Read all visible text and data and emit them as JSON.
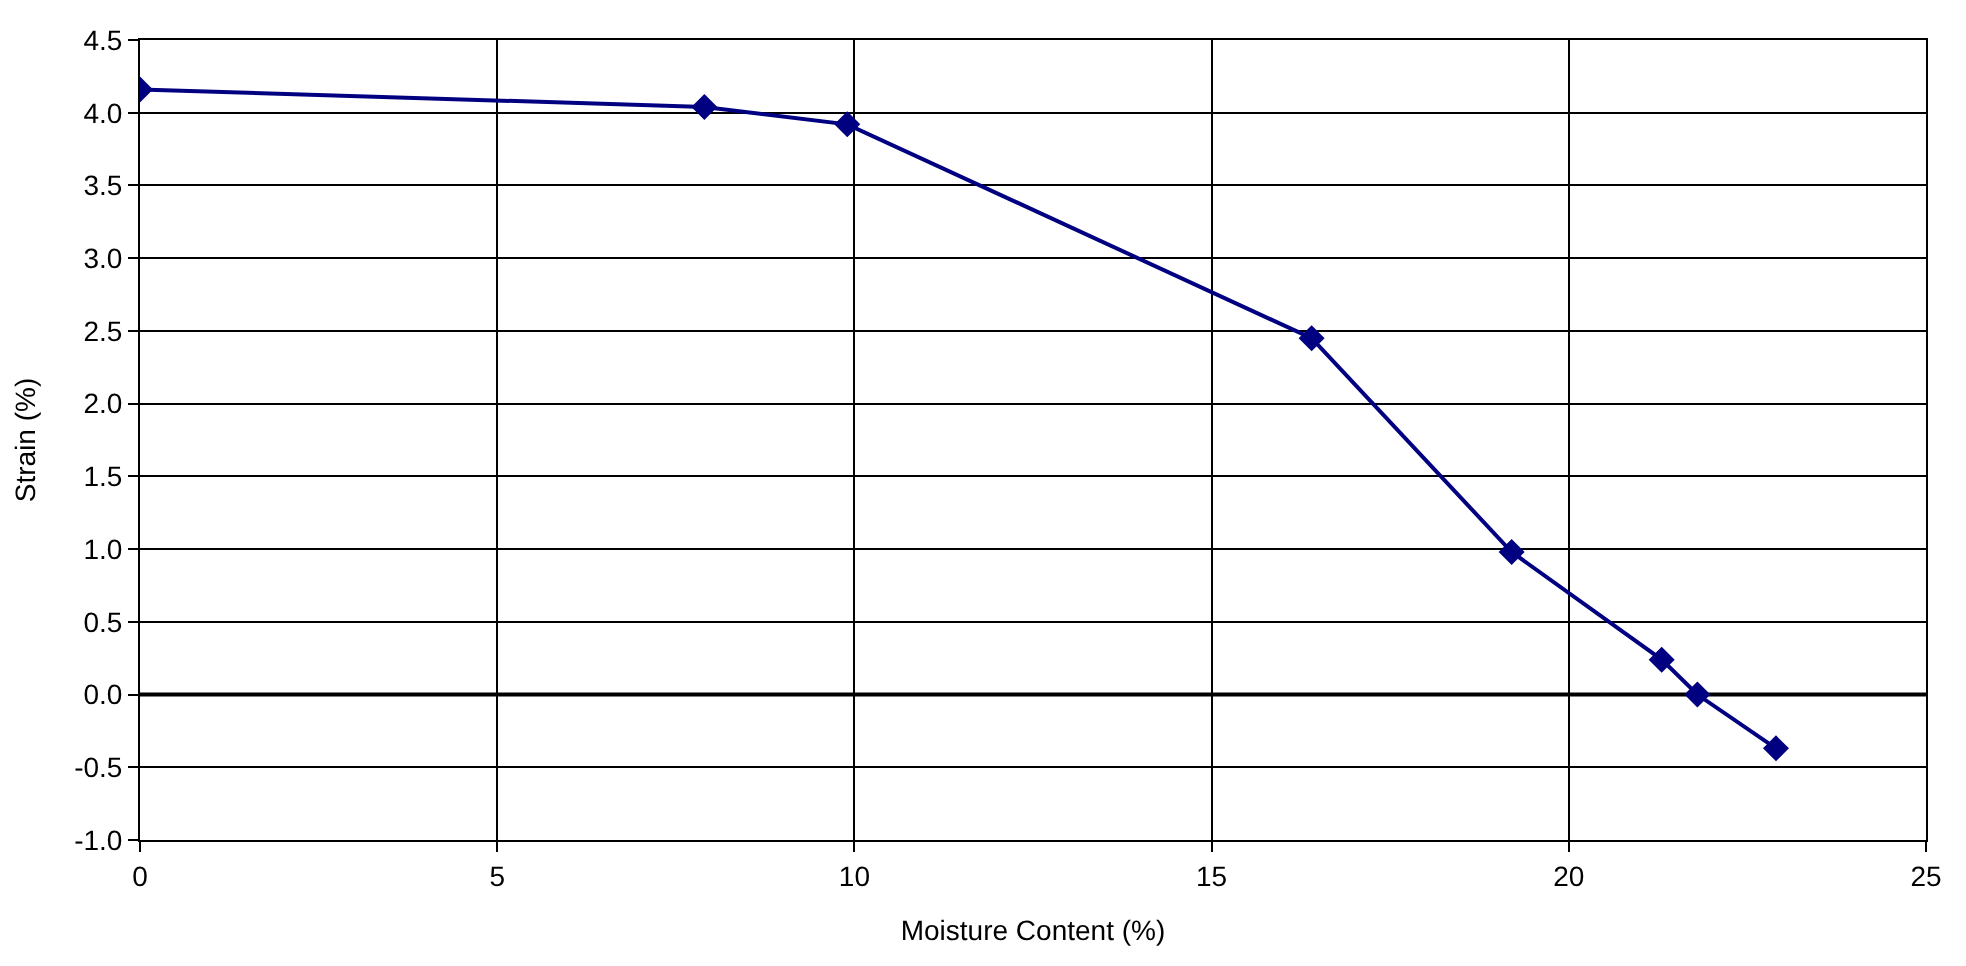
{
  "chart_data": {
    "type": "line",
    "xlabel": "Moisture Content (%)",
    "ylabel": "Strain (%)",
    "x": [
      0,
      7.9,
      9.9,
      16.4,
      19.2,
      21.3,
      21.8,
      22.9
    ],
    "series": [
      {
        "color": "#000080",
        "values": [
          4.16,
          4.04,
          3.92,
          2.45,
          0.98,
          0.24,
          0.0,
          -0.37
        ]
      }
    ],
    "xlim": [
      0,
      25
    ],
    "xticks": [
      0,
      5,
      10,
      15,
      20,
      25
    ],
    "ylim": [
      -1.0,
      4.5
    ],
    "yticks": [
      {
        "value": -1,
        "label": "-1.0"
      },
      {
        "value": -0.5,
        "label": "-0.5"
      },
      {
        "value": 0,
        "label": "0.0"
      },
      {
        "value": 0.5,
        "label": "0.5"
      },
      {
        "value": 1,
        "label": "1.0"
      },
      {
        "value": 1.5,
        "label": "1.5"
      },
      {
        "value": 2,
        "label": "2.0"
      },
      {
        "value": 2.5,
        "label": "2.5"
      },
      {
        "value": 3,
        "label": "3.0"
      },
      {
        "value": 3.5,
        "label": "3.5"
      },
      {
        "value": 4,
        "label": "4.0"
      },
      {
        "value": 4.5,
        "label": "4.5"
      }
    ],
    "ref_lines": [
      {
        "axis": "y",
        "value": 0,
        "color": "#000000"
      }
    ],
    "grid": true,
    "marker": "diamond",
    "line_style": "solid"
  }
}
